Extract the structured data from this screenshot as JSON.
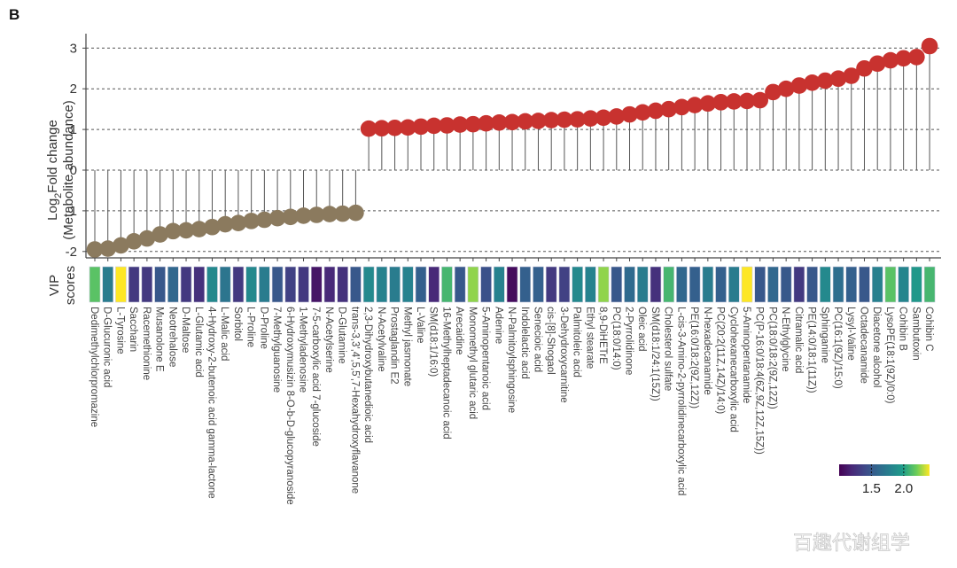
{
  "chart_data": {
    "type": "lollipop",
    "panel_label": "B",
    "title": "",
    "ylabel_line1": "Log",
    "ylabel_sub": "2",
    "ylabel_line1_rest": "Fold change",
    "ylabel_line2": "(Metabolite abundance)",
    "ylim": [
      -2.2,
      3.3
    ],
    "yticks": [
      -2,
      -1,
      0,
      1,
      2,
      3
    ],
    "grid": "horizontal dashed",
    "heatmap_label_line1": "VIP",
    "heatmap_label_line2": "scores",
    "colors": {
      "down": "#8b7a5e",
      "up": "#c8322f",
      "stem": "#555555",
      "grid": "#555555"
    },
    "colorbar": {
      "colormap": "viridis",
      "range": [
        1.0,
        2.4
      ],
      "ticks": [
        1.5,
        2.0
      ],
      "tick_labels": [
        "1.5",
        "2.0"
      ]
    },
    "categories": [
      "Dedimethylchlorpromazine",
      "D-Glucuronic acid",
      "L-Tyrosine",
      "Saccharin",
      "Racemethionine",
      "Musanolone E",
      "Neotrehalose",
      "D-Maltose",
      "L-Glutamic acid",
      "4-Hydroxy-2-butenoic acid gamma-lactone",
      "L-Malic acid",
      "Sorbitol",
      "L-Proline",
      "D-Proline",
      "7-Methylguanosine",
      "6-Hydroxymusizin 8-O-b-D-glucopyranoside",
      "1-Methyladenosine",
      "7-5-carboxylic acid 7-glucoside",
      "N-Acetylserine",
      "D-Glutamine",
      "trans-3,3',4',5,5',7-Hexahydroxyflavanone",
      "2,3-Dihydroxybutanedioic acid",
      "N-Acetylvaline",
      "Prostaglandin E2",
      "Methyl jasmonate",
      "L-Valine",
      "SM(d18:1/16:0)",
      "16-Methylheptadecanoic acid",
      "Arecaidine",
      "Monomethyl glutaric acid",
      "5-Aminopentanoic acid",
      "Adenine",
      "N-Palmitoylsphingosine",
      "Indolelactic acid",
      "Senecioic acid",
      "cis-[8]-Shogaol",
      "3-Dehydroxycarnitine",
      "Palmitoleic acid",
      "Ethyl stearate",
      "8,9-DiHETrE",
      "PC(18:0/14:0)",
      "2-Pyrrolidinone",
      "Oleic acid",
      "SM(d18:1/24:1(15Z))",
      "Cholesterol sulfate",
      "L-cis-3-Amino-2-pyrrolidinecarboxylic acid",
      "PE(16:0/18:2(9Z,12Z))",
      "N-hexadecanamide",
      "PC(20:2(11Z,14Z)/14:0)",
      "Cyclohexanecarboxylic acid",
      "5-Aminopentanamide",
      "PC(P-16:0/18:4(6Z,9Z,12Z,15Z))",
      "PC(18:0/18:2(9Z,12Z))",
      "N-Ethylglycine",
      "Citramalic acid",
      "PE(14:0/18:1(11Z))",
      "Sphinganine",
      "PC(16:1(9Z)/15:0)",
      "Lysyl-Valine",
      "Octadecanamide",
      "Diacetone alcohol",
      "LysoPE(18:1(9Z)/0:0)",
      "Cohibin B",
      "Sambutoxin",
      "Cohibin C"
    ],
    "log2fc": [
      -1.95,
      -1.93,
      -1.85,
      -1.75,
      -1.68,
      -1.58,
      -1.5,
      -1.48,
      -1.45,
      -1.4,
      -1.33,
      -1.3,
      -1.25,
      -1.22,
      -1.18,
      -1.15,
      -1.12,
      -1.1,
      -1.08,
      -1.07,
      -1.05,
      1.02,
      1.03,
      1.04,
      1.05,
      1.07,
      1.09,
      1.1,
      1.12,
      1.13,
      1.15,
      1.17,
      1.18,
      1.2,
      1.21,
      1.23,
      1.24,
      1.25,
      1.27,
      1.29,
      1.32,
      1.37,
      1.42,
      1.46,
      1.5,
      1.55,
      1.6,
      1.64,
      1.67,
      1.69,
      1.7,
      1.72,
      1.92,
      2.0,
      2.08,
      2.15,
      2.2,
      2.25,
      2.32,
      2.5,
      2.62,
      2.7,
      2.75,
      2.78,
      3.05
    ],
    "vip": [
      2.15,
      1.75,
      2.4,
      1.3,
      1.3,
      1.5,
      1.6,
      1.3,
      1.25,
      1.85,
      1.7,
      1.3,
      1.85,
      1.75,
      1.5,
      1.35,
      1.3,
      1.1,
      1.2,
      1.25,
      1.5,
      1.85,
      1.8,
      1.75,
      1.8,
      1.55,
      1.2,
      2.1,
      1.5,
      2.25,
      1.45,
      1.8,
      1.05,
      1.55,
      1.55,
      1.3,
      1.35,
      1.85,
      1.8,
      2.25,
      1.5,
      1.62,
      1.75,
      1.25,
      2.1,
      1.6,
      1.55,
      1.75,
      1.55,
      1.75,
      2.4,
      1.5,
      1.6,
      1.5,
      1.3,
      1.5,
      1.85,
      1.65,
      1.55,
      1.5,
      1.78,
      2.15,
      1.82,
      1.95,
      2.1
    ]
  },
  "watermark": "百趣代谢组学"
}
